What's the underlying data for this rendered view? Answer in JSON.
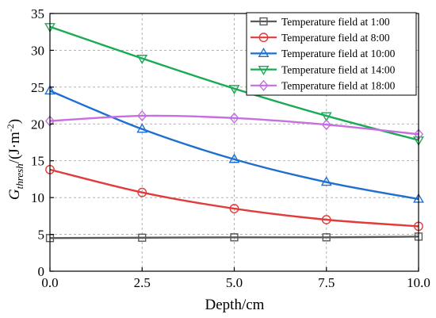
{
  "chart_data": {
    "type": "line",
    "xlabel": "Depth/cm",
    "ylabel": {
      "main": "G",
      "sub": "thresh",
      "unit_prefix": "/(J·m",
      "unit_sup": "-2",
      "unit_suffix": ")"
    },
    "xlim": [
      0,
      10
    ],
    "ylim": [
      0,
      35
    ],
    "xticks": [
      "0.0",
      "2.5",
      "5.0",
      "7.5",
      "10.0"
    ],
    "yticks": [
      "0",
      "5",
      "10",
      "15",
      "20",
      "25",
      "30",
      "35"
    ],
    "grid": true,
    "legend_position": "top-right",
    "x": [
      0,
      2.5,
      5,
      7.5,
      10
    ],
    "series": [
      {
        "name": "Temperature field at 1:00",
        "color": "#5a5a5a",
        "marker": "square",
        "values": [
          4.5,
          4.55,
          4.6,
          4.6,
          4.7
        ]
      },
      {
        "name": "Temperature field at 8:00",
        "color": "#e23b3b",
        "marker": "circle",
        "values": [
          13.8,
          10.7,
          8.5,
          7.0,
          6.1
        ]
      },
      {
        "name": "Temperature field at 10:00",
        "color": "#1f6fd0",
        "marker": "triangle-up",
        "values": [
          24.5,
          19.3,
          15.2,
          12.1,
          9.8
        ]
      },
      {
        "name": "Temperature field at 14:00",
        "color": "#1aaa55",
        "marker": "triangle-down",
        "values": [
          33.2,
          28.9,
          24.8,
          21.1,
          17.8
        ]
      },
      {
        "name": "Temperature field at 18:00",
        "color": "#c56fe0",
        "marker": "diamond",
        "values": [
          20.4,
          21.1,
          20.8,
          19.9,
          18.6
        ]
      }
    ]
  }
}
